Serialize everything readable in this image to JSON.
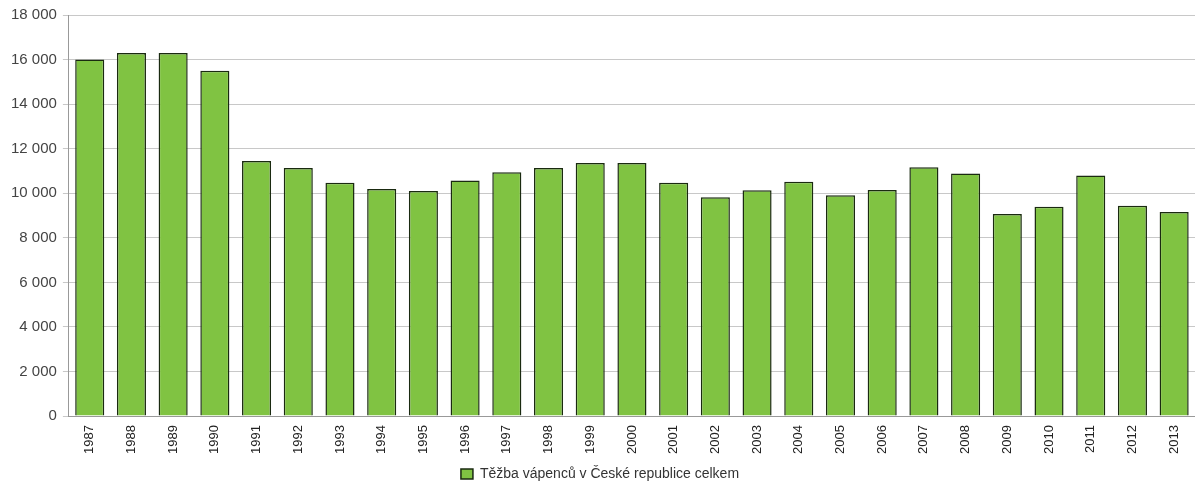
{
  "chart_data": {
    "type": "bar",
    "categories": [
      "1987",
      "1988",
      "1989",
      "1990",
      "1991",
      "1992",
      "1993",
      "1994",
      "1995",
      "1996",
      "1997",
      "1998",
      "1999",
      "2000",
      "2001",
      "2002",
      "2003",
      "2004",
      "2005",
      "2006",
      "2007",
      "2008",
      "2009",
      "2010",
      "2011",
      "2012",
      "2013"
    ],
    "series": [
      {
        "name": "Těžba vápenců v České republice celkem",
        "color": "#80c342",
        "values": [
          16000,
          16300,
          16300,
          15500,
          11450,
          11130,
          10470,
          10190,
          10100,
          10570,
          10940,
          11130,
          11360,
          11360,
          10470,
          9820,
          10140,
          10520,
          9910,
          10150,
          11170,
          10890,
          9070,
          9400,
          10800,
          9440,
          9160
        ]
      }
    ],
    "ylim": [
      0,
      18000
    ],
    "yticks": [
      {
        "value": 0,
        "label": "0"
      },
      {
        "value": 2000,
        "label": "2 000"
      },
      {
        "value": 4000,
        "label": "4 000"
      },
      {
        "value": 6000,
        "label": "6 000"
      },
      {
        "value": 8000,
        "label": "8 000"
      },
      {
        "value": 10000,
        "label": "10 000"
      },
      {
        "value": 12000,
        "label": "12 000"
      },
      {
        "value": 14000,
        "label": "14 000"
      },
      {
        "value": 16000,
        "label": "16 000"
      },
      {
        "value": 18000,
        "label": "18 000"
      }
    ],
    "grid": "y",
    "legend": "bottom"
  }
}
